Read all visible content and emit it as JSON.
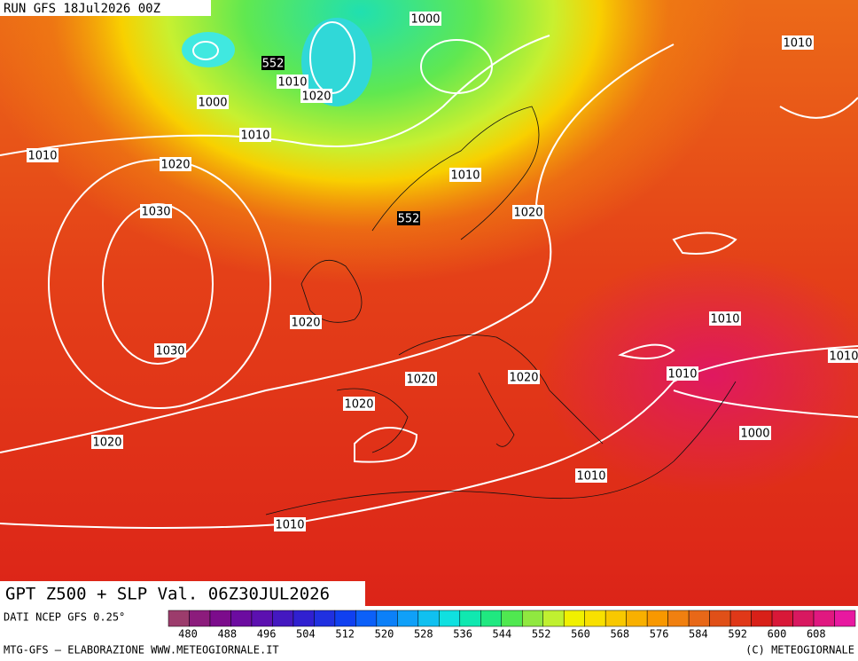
{
  "header": {
    "run": "RUN GFS 18Jul2026 00Z"
  },
  "map": {
    "title": "GPT Z500 + SLP Val. 06Z30JUL2026",
    "isobar_labels": [
      "1000",
      "1010",
      "552",
      "1010",
      "1020",
      "1000",
      "1010",
      "1010",
      "1020",
      "1010",
      "1030",
      "552",
      "1020",
      "1020",
      "1010",
      "1030",
      "1010",
      "1020",
      "1020",
      "1010",
      "1020",
      "1000",
      "1020",
      "1010",
      "1010"
    ]
  },
  "colorbar": {
    "source": "DATI NCEP GFS 0.25°",
    "labels": [
      "480",
      "488",
      "496",
      "504",
      "512",
      "520",
      "528",
      "536",
      "544",
      "552",
      "560",
      "568",
      "576",
      "584",
      "592",
      "600",
      "608"
    ],
    "colors": [
      "#9c3c6c",
      "#8c1c7c",
      "#7c0c8c",
      "#6c0ca0",
      "#5c10b0",
      "#4418c0",
      "#3020d0",
      "#2030e0",
      "#1040f0",
      "#0c60f8",
      "#0c80f8",
      "#10a0f8",
      "#10c0f0",
      "#10e0e0",
      "#10e8b0",
      "#20e880",
      "#50e850",
      "#90e840",
      "#c0f030",
      "#f0f000",
      "#f8e000",
      "#f8c800",
      "#f8b000",
      "#f89800",
      "#f08010",
      "#e86818",
      "#e05018",
      "#e03818",
      "#d82018",
      "#d81838",
      "#d81860",
      "#e01880",
      "#e818a0"
    ]
  },
  "footer": {
    "left": "MTG-GFS — ELABORAZIONE WWW.METEOGIORNALE.IT",
    "right": "(C) METEOGIORNALE"
  }
}
